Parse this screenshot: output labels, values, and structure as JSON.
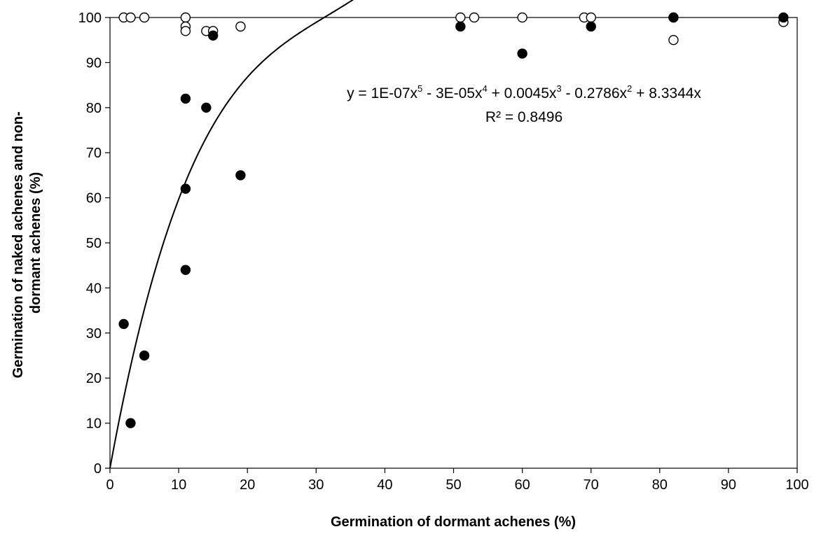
{
  "chart_data": {
    "type": "scatter",
    "xlabel": "Germination of dormant achenes (%)",
    "ylabel_lines": [
      "Germination of naked achenes and non-",
      "dormant achenes (%)"
    ],
    "xlim": [
      0,
      100
    ],
    "ylim": [
      0,
      100
    ],
    "x_ticks": [
      0,
      10,
      20,
      30,
      40,
      50,
      60,
      70,
      80,
      90,
      100
    ],
    "y_ticks": [
      0,
      10,
      20,
      30,
      40,
      50,
      60,
      70,
      80,
      90,
      100
    ],
    "x_tick_labels": [
      "0",
      "10",
      "20",
      "30",
      "40",
      "50",
      "60",
      "70",
      "80",
      "90",
      "100"
    ],
    "y_tick_labels": [
      "0",
      "10",
      "20",
      "30",
      "40",
      "50",
      "60",
      "70",
      "80",
      "90",
      "100"
    ],
    "grid": false,
    "legend": "none",
    "series": [
      {
        "marker": "filled-circle",
        "color": "#000000",
        "points": [
          [
            2,
            32
          ],
          [
            3,
            10
          ],
          [
            5,
            25
          ],
          [
            11,
            82
          ],
          [
            11,
            62
          ],
          [
            11,
            44
          ],
          [
            14,
            80
          ],
          [
            15,
            96
          ],
          [
            19,
            65
          ],
          [
            51,
            98
          ],
          [
            60,
            92
          ],
          [
            70,
            98
          ],
          [
            82,
            100
          ],
          [
            98,
            100
          ]
        ]
      },
      {
        "marker": "open-circle",
        "color": "#000000",
        "points": [
          [
            2,
            100
          ],
          [
            3,
            100
          ],
          [
            5,
            100
          ],
          [
            11,
            100
          ],
          [
            11,
            98
          ],
          [
            11,
            97
          ],
          [
            14,
            97
          ],
          [
            15,
            97
          ],
          [
            19,
            98
          ],
          [
            51,
            100
          ],
          [
            53,
            100
          ],
          [
            60,
            100
          ],
          [
            69,
            100
          ],
          [
            70,
            100
          ],
          [
            82,
            95
          ],
          [
            82,
            100
          ],
          [
            98,
            99
          ]
        ]
      }
    ],
    "trendline": {
      "type": "polynomial",
      "coefficients_desc": [
        1e-07,
        -3e-05,
        0.0045,
        -0.2786,
        8.3344,
        0
      ],
      "x_range": [
        0,
        98
      ]
    },
    "annotations": {
      "equation": {
        "y": "y = 1E-07x",
        "e5": "5",
        "t2": " - 3E-05x",
        "e4": "4",
        "t3": " + 0.0045x",
        "e3": "3",
        "t4": " - 0.2786x",
        "e2": "2",
        "t5": " + 8.3344x"
      },
      "r_squared": "R² = 0.8496"
    }
  }
}
